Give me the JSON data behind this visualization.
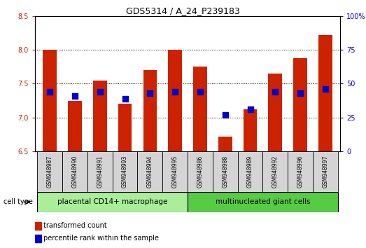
{
  "title": "GDS5314 / A_24_P239183",
  "samples": [
    "GSM948987",
    "GSM948990",
    "GSM948991",
    "GSM948993",
    "GSM948994",
    "GSM948995",
    "GSM948986",
    "GSM948988",
    "GSM948989",
    "GSM948992",
    "GSM948996",
    "GSM948997"
  ],
  "transformed_count": [
    8.0,
    7.25,
    7.55,
    7.2,
    7.7,
    8.0,
    7.75,
    6.72,
    7.12,
    7.65,
    7.88,
    8.22
  ],
  "percentile_rank": [
    44,
    41,
    44,
    39,
    43,
    44,
    44,
    27,
    31,
    44,
    43,
    46
  ],
  "groups": [
    {
      "label": "placental CD14+ macrophage",
      "color": "#aaee99",
      "start": 0,
      "end": 6
    },
    {
      "label": "multinucleated giant cells",
      "color": "#55cc44",
      "start": 6,
      "end": 12
    }
  ],
  "cell_type_label": "cell type",
  "ylim_left": [
    6.5,
    8.5
  ],
  "ylim_right": [
    0,
    100
  ],
  "yticks_left": [
    6.5,
    7.0,
    7.5,
    8.0,
    8.5
  ],
  "yticks_right": [
    0,
    25,
    50,
    75,
    100
  ],
  "ytick_labels_right": [
    "0",
    "25",
    "50",
    "75",
    "100%"
  ],
  "bar_color": "#cc2200",
  "dot_color": "#0000cc",
  "bar_width": 0.55,
  "dot_size": 35,
  "background_color": "#ffffff",
  "tick_label_color_left": "#cc2200",
  "tick_label_color_right": "#0000cc",
  "legend_tc": "transformed count",
  "legend_pr": "percentile rank within the sample",
  "grid_color": "#000000",
  "label_fontsize": 7,
  "tick_fontsize": 7,
  "title_fontsize": 9,
  "sample_fontsize": 5.5,
  "group_fontsize": 7.5
}
